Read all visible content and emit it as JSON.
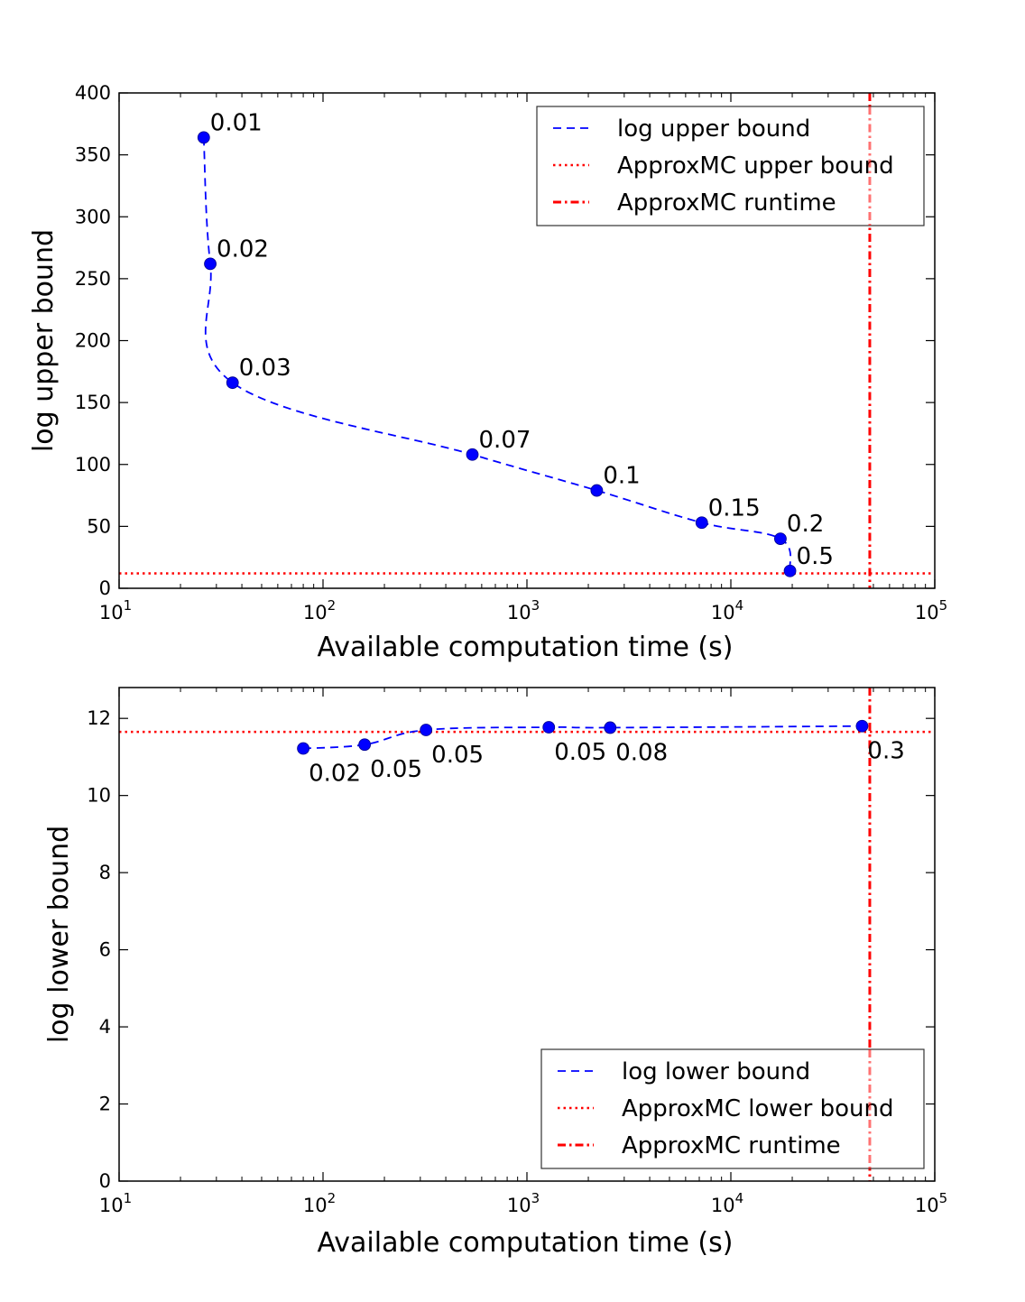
{
  "colors": {
    "series": "#0000ff",
    "approx": "#ff0000",
    "axis": "#000000"
  },
  "chart_data": [
    {
      "type": "line",
      "xscale": "log",
      "xlim": [
        10,
        100000
      ],
      "ylim": [
        0,
        400
      ],
      "xticks": [
        10,
        100,
        1000,
        10000,
        100000
      ],
      "xtick_labels": [
        {
          "base": "10",
          "exp": "1"
        },
        {
          "base": "10",
          "exp": "2"
        },
        {
          "base": "10",
          "exp": "3"
        },
        {
          "base": "10",
          "exp": "4"
        },
        {
          "base": "10",
          "exp": "5"
        }
      ],
      "yticks": [
        0,
        50,
        100,
        150,
        200,
        250,
        300,
        350,
        400
      ],
      "ytick_labels": [
        "0",
        "50",
        "100",
        "150",
        "200",
        "250",
        "300",
        "350",
        "400"
      ],
      "xlabel": "Available computation time (s)",
      "ylabel": "log upper bound",
      "legend_position": "top-right",
      "series": [
        {
          "name": "log upper bound",
          "x": [
            26,
            28,
            36,
            540,
            2200,
            7200,
            17500,
            19500
          ],
          "y": [
            364,
            262,
            166,
            108,
            79,
            53,
            40,
            14
          ],
          "labels": [
            "0.01",
            "0.02",
            "0.03",
            "0.07",
            "0.1",
            "0.15",
            "0.2",
            "0.5"
          ],
          "label_side": "above"
        }
      ],
      "hline": {
        "name": "ApproxMC upper bound",
        "y": 12
      },
      "vline": {
        "name": "ApproxMC runtime",
        "x": 48000
      }
    },
    {
      "type": "line",
      "xscale": "log",
      "xlim": [
        10,
        100000
      ],
      "ylim": [
        0,
        12.8
      ],
      "xticks": [
        10,
        100,
        1000,
        10000,
        100000
      ],
      "xtick_labels": [
        {
          "base": "10",
          "exp": "1"
        },
        {
          "base": "10",
          "exp": "2"
        },
        {
          "base": "10",
          "exp": "3"
        },
        {
          "base": "10",
          "exp": "4"
        },
        {
          "base": "10",
          "exp": "5"
        }
      ],
      "yticks": [
        0,
        2,
        4,
        6,
        8,
        10,
        12
      ],
      "ytick_labels": [
        "0",
        "2",
        "4",
        "6",
        "8",
        "10",
        "12"
      ],
      "xlabel": "Available computation time (s)",
      "ylabel": "log lower bound",
      "legend_position": "bottom-right",
      "series": [
        {
          "name": "log lower bound",
          "x": [
            80,
            160,
            320,
            1280,
            2560,
            44000
          ],
          "y": [
            11.22,
            11.32,
            11.7,
            11.77,
            11.76,
            11.8
          ],
          "labels": [
            "0.02",
            "0.05",
            "0.05",
            "0.05",
            "0.08",
            "0.3"
          ],
          "label_side": "below"
        }
      ],
      "hline": {
        "name": "ApproxMC lower bound",
        "y": 11.65
      },
      "vline": {
        "name": "ApproxMC runtime",
        "x": 48000
      }
    }
  ]
}
